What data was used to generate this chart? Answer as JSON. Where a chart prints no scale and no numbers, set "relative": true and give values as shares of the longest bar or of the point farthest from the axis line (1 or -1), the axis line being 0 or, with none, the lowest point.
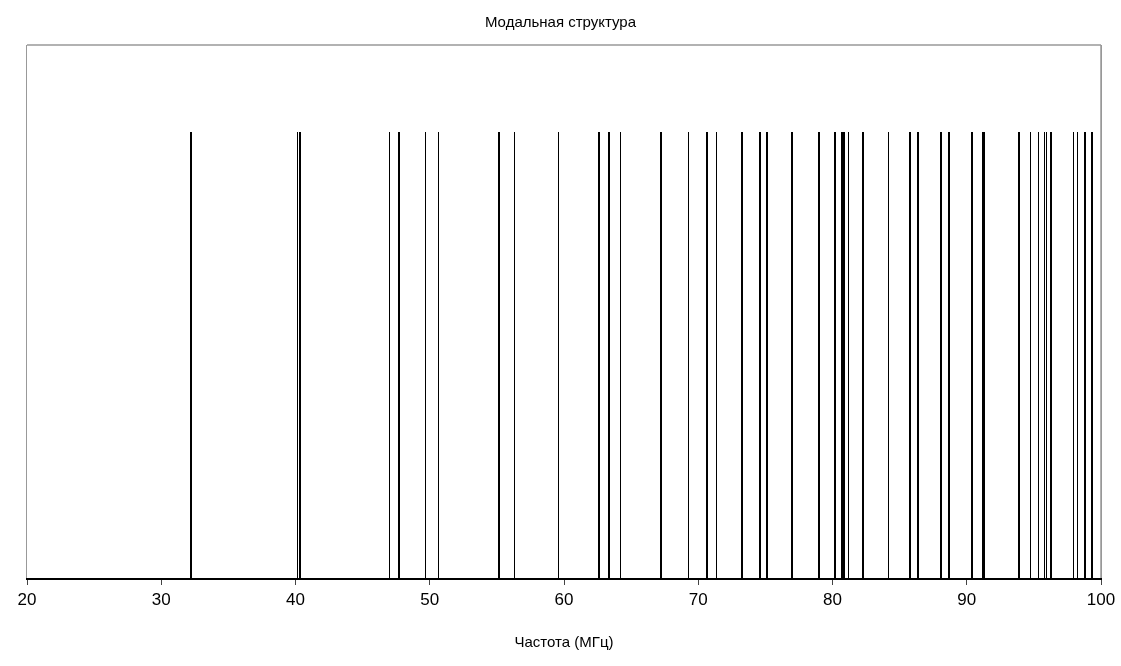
{
  "chart_data": {
    "type": "bar",
    "title": "Модальная структура",
    "xlabel": "Частота (МГц)",
    "relative": true,
    "color": "#000000",
    "x": [
      32.2,
      40.16,
      40.33,
      46.99,
      47.7,
      49.67,
      50.66,
      55.16,
      56.3,
      59.6,
      62.6,
      63.35,
      64.2,
      67.23,
      69.26,
      70.63,
      71.37,
      73.26,
      74.6,
      75.1,
      77.0,
      79.0,
      80.2,
      80.7,
      80.86,
      81.18,
      82.27,
      84.18,
      85.77,
      86.39,
      88.06,
      88.7,
      90.37,
      91.19,
      91.29,
      93.9,
      94.76,
      95.33,
      95.78,
      95.95,
      96.28,
      97.94,
      98.24,
      98.79,
      99.35
    ],
    "values": [
      1,
      1,
      1,
      1,
      1,
      1,
      1,
      1,
      1,
      1,
      1,
      1,
      1,
      1,
      1,
      1,
      1,
      1,
      1,
      1,
      1,
      1,
      1,
      1,
      1,
      1,
      1,
      1,
      1,
      1,
      1,
      1,
      1,
      1,
      1,
      1,
      1,
      1,
      1,
      1,
      1,
      1,
      1,
      1,
      1
    ],
    "xlim": [
      20,
      100
    ],
    "xticks": [
      20,
      30,
      40,
      50,
      60,
      70,
      80,
      90,
      100
    ],
    "grid": false,
    "legend": false
  }
}
